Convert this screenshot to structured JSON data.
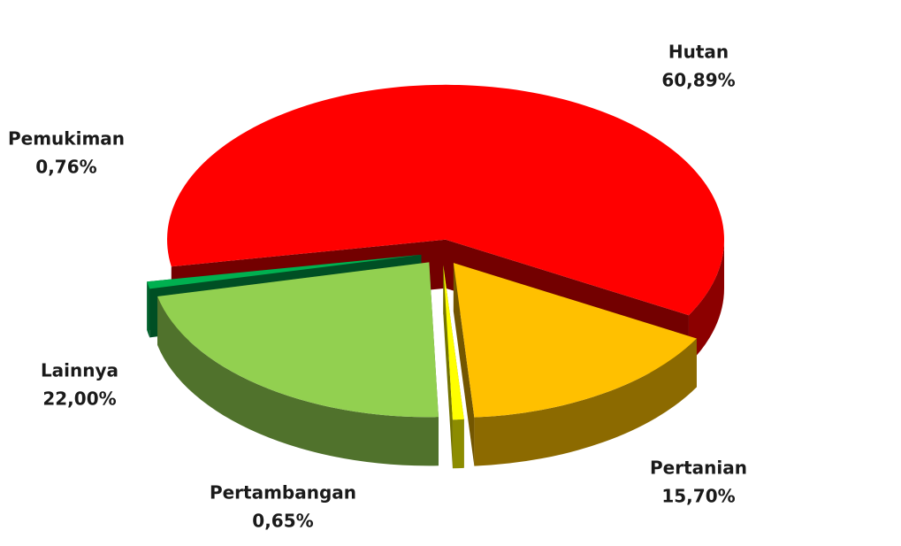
{
  "chart_data": {
    "type": "pie",
    "categories": [
      "Hutan",
      "Pertanian",
      "Pertambangan",
      "Lainnya",
      "Pemukiman"
    ],
    "values": [
      60.89,
      15.7,
      0.65,
      22.0,
      0.76
    ],
    "value_labels": [
      "60,89%",
      "15,70%",
      "0,65%",
      "22,00%",
      "0,76%"
    ],
    "colors": [
      "#ff0000",
      "#ffc000",
      "#ffff00",
      "#92d050",
      "#00b050"
    ]
  }
}
